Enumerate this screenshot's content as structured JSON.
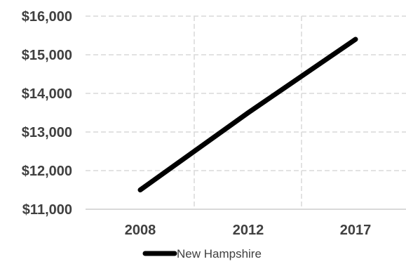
{
  "chart_data": {
    "type": "line",
    "title": "",
    "xlabel": "",
    "ylabel": "",
    "categories": [
      "2008",
      "2012",
      "2017"
    ],
    "y_tick_labels": [
      "$11,000",
      "$12,000",
      "$13,000",
      "$14,000",
      "$15,000",
      "$16,000"
    ],
    "y_ticks": [
      11000,
      12000,
      13000,
      14000,
      15000,
      16000
    ],
    "ylim": [
      11000,
      16000
    ],
    "grid": true,
    "legend_position": "bottom",
    "series": [
      {
        "name": "New Hampshire",
        "values": [
          11500,
          13500,
          15400
        ],
        "color": "#000000"
      }
    ]
  }
}
